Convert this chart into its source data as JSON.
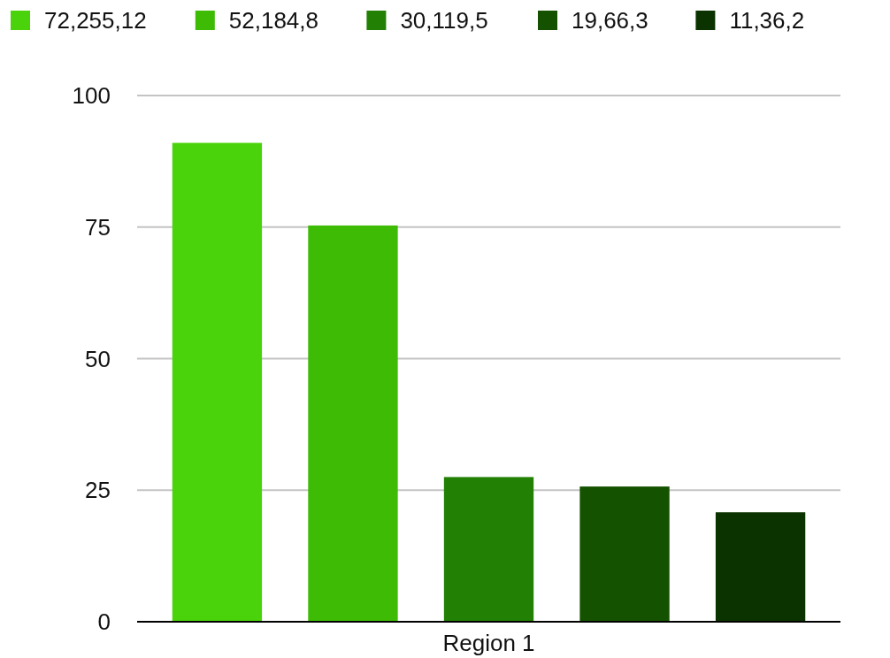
{
  "chart_data": {
    "type": "bar",
    "categories": [
      "Region 1"
    ],
    "series": [
      {
        "name": "72,255,12",
        "color": "#4ad20a",
        "values": [
          91
        ]
      },
      {
        "name": "52,184,8",
        "color": "#3dbb05",
        "values": [
          75.3
        ]
      },
      {
        "name": "30,119,5",
        "color": "#228004",
        "values": [
          27.5
        ]
      },
      {
        "name": "19,66,3",
        "color": "#155200",
        "values": [
          25.7
        ]
      },
      {
        "name": "11,36,2",
        "color": "#0b3300",
        "values": [
          20.8
        ]
      }
    ],
    "ylim": [
      0,
      100
    ],
    "yticks": [
      0,
      25,
      50,
      75,
      100
    ],
    "grid": "y",
    "legend": "top"
  }
}
